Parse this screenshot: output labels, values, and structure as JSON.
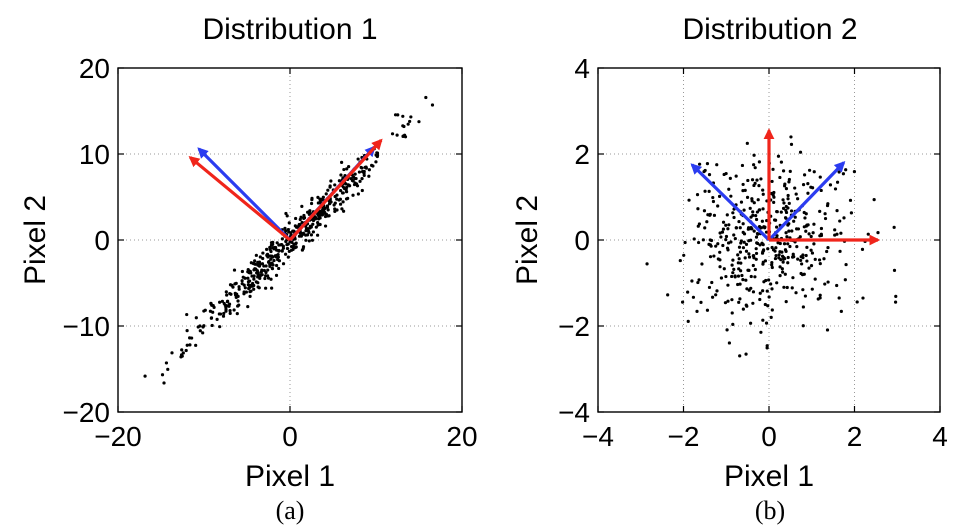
{
  "chart_data": [
    {
      "type": "scatter",
      "title": "Distribution 1",
      "xlabel": "Pixel 1",
      "ylabel": "Pixel 2",
      "caption": "(a)",
      "xlim": [
        -20,
        20
      ],
      "ylim": [
        -20,
        20
      ],
      "xticks": [
        -20,
        0,
        20
      ],
      "yticks": [
        -20,
        -10,
        0,
        10,
        20
      ],
      "xtick_labels": [
        "−20",
        "0",
        "20"
      ],
      "ytick_labels": [
        "−20",
        "−10",
        "0",
        "10",
        "20"
      ],
      "grid": true,
      "scatter": {
        "n": 520,
        "seed": 11,
        "mode": "correlated",
        "t_mean": 0,
        "t_std": 5.8,
        "t_clip": 18.5,
        "noise_std": 1.15,
        "color": "#000000"
      },
      "arrows": [
        {
          "x": 9.8,
          "y": 10.8,
          "color": "#2b3cf0"
        },
        {
          "x": -10.6,
          "y": 10.6,
          "color": "#2b3cf0"
        },
        {
          "x": 10.6,
          "y": 11.6,
          "color": "#f0251b"
        },
        {
          "x": -11.6,
          "y": 9.6,
          "color": "#f0251b"
        }
      ]
    },
    {
      "type": "scatter",
      "title": "Distribution 2",
      "xlabel": "Pixel 1",
      "ylabel": "Pixel 2",
      "caption": "(b)",
      "xlim": [
        -4,
        4
      ],
      "ylim": [
        -4,
        4
      ],
      "xticks": [
        -4,
        -2,
        0,
        2,
        4
      ],
      "yticks": [
        -4,
        -2,
        0,
        2,
        4
      ],
      "xtick_labels": [
        "−4",
        "−2",
        "0",
        "2",
        "4"
      ],
      "ytick_labels": [
        "−4",
        "−2",
        "0",
        "2",
        "4"
      ],
      "grid": true,
      "scatter": {
        "n": 480,
        "seed": 7,
        "mode": "blob",
        "sx": 0.95,
        "sy": 0.95,
        "clip": 3.2,
        "color": "#000000"
      },
      "arrows": [
        {
          "x": 1.75,
          "y": 1.8,
          "color": "#2b3cf0"
        },
        {
          "x": -1.8,
          "y": 1.75,
          "color": "#2b3cf0"
        },
        {
          "x": 0.0,
          "y": 2.55,
          "color": "#f0251b"
        },
        {
          "x": 2.55,
          "y": 0.0,
          "color": "#f0251b"
        }
      ]
    }
  ]
}
